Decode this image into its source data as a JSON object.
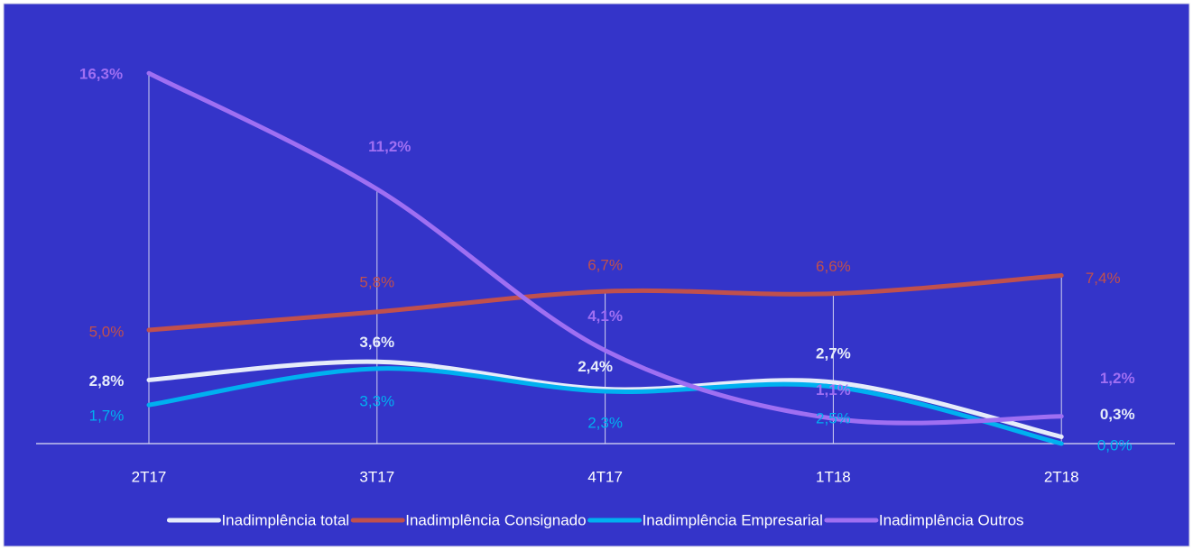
{
  "chart_data": {
    "type": "line",
    "categories": [
      "2T17",
      "3T17",
      "4T17",
      "1T18",
      "2T18"
    ],
    "ylim": [
      0,
      18
    ],
    "series": [
      {
        "name": "Inadimplência total",
        "color": "#e6ecfa",
        "values": [
          2.8,
          3.6,
          2.4,
          2.7,
          0.3
        ],
        "value_labels": [
          "2,8%",
          "3,6%",
          "2,4%",
          "2,7%",
          "0,3%"
        ]
      },
      {
        "name": "Inadimplência Consignado",
        "color": "#c0504d",
        "values": [
          5.0,
          5.8,
          6.7,
          6.6,
          7.4
        ],
        "value_labels": [
          "5,0%",
          "5,8%",
          "6,7%",
          "6,6%",
          "7,4%"
        ]
      },
      {
        "name": "Inadimplência Empresarial",
        "color": "#00b0f0",
        "values": [
          1.7,
          3.3,
          2.3,
          2.5,
          0.0
        ],
        "value_labels": [
          "1,7%",
          "3,3%",
          "2,3%",
          "2,5%",
          "0,0%"
        ]
      },
      {
        "name": "Inadimplência Outros",
        "color": "#9f6ff2",
        "values": [
          16.3,
          11.2,
          4.1,
          1.1,
          1.2
        ],
        "value_labels": [
          "16,3%",
          "11,2%",
          "4,1%",
          "1,1%",
          "1,2%"
        ]
      }
    ]
  }
}
